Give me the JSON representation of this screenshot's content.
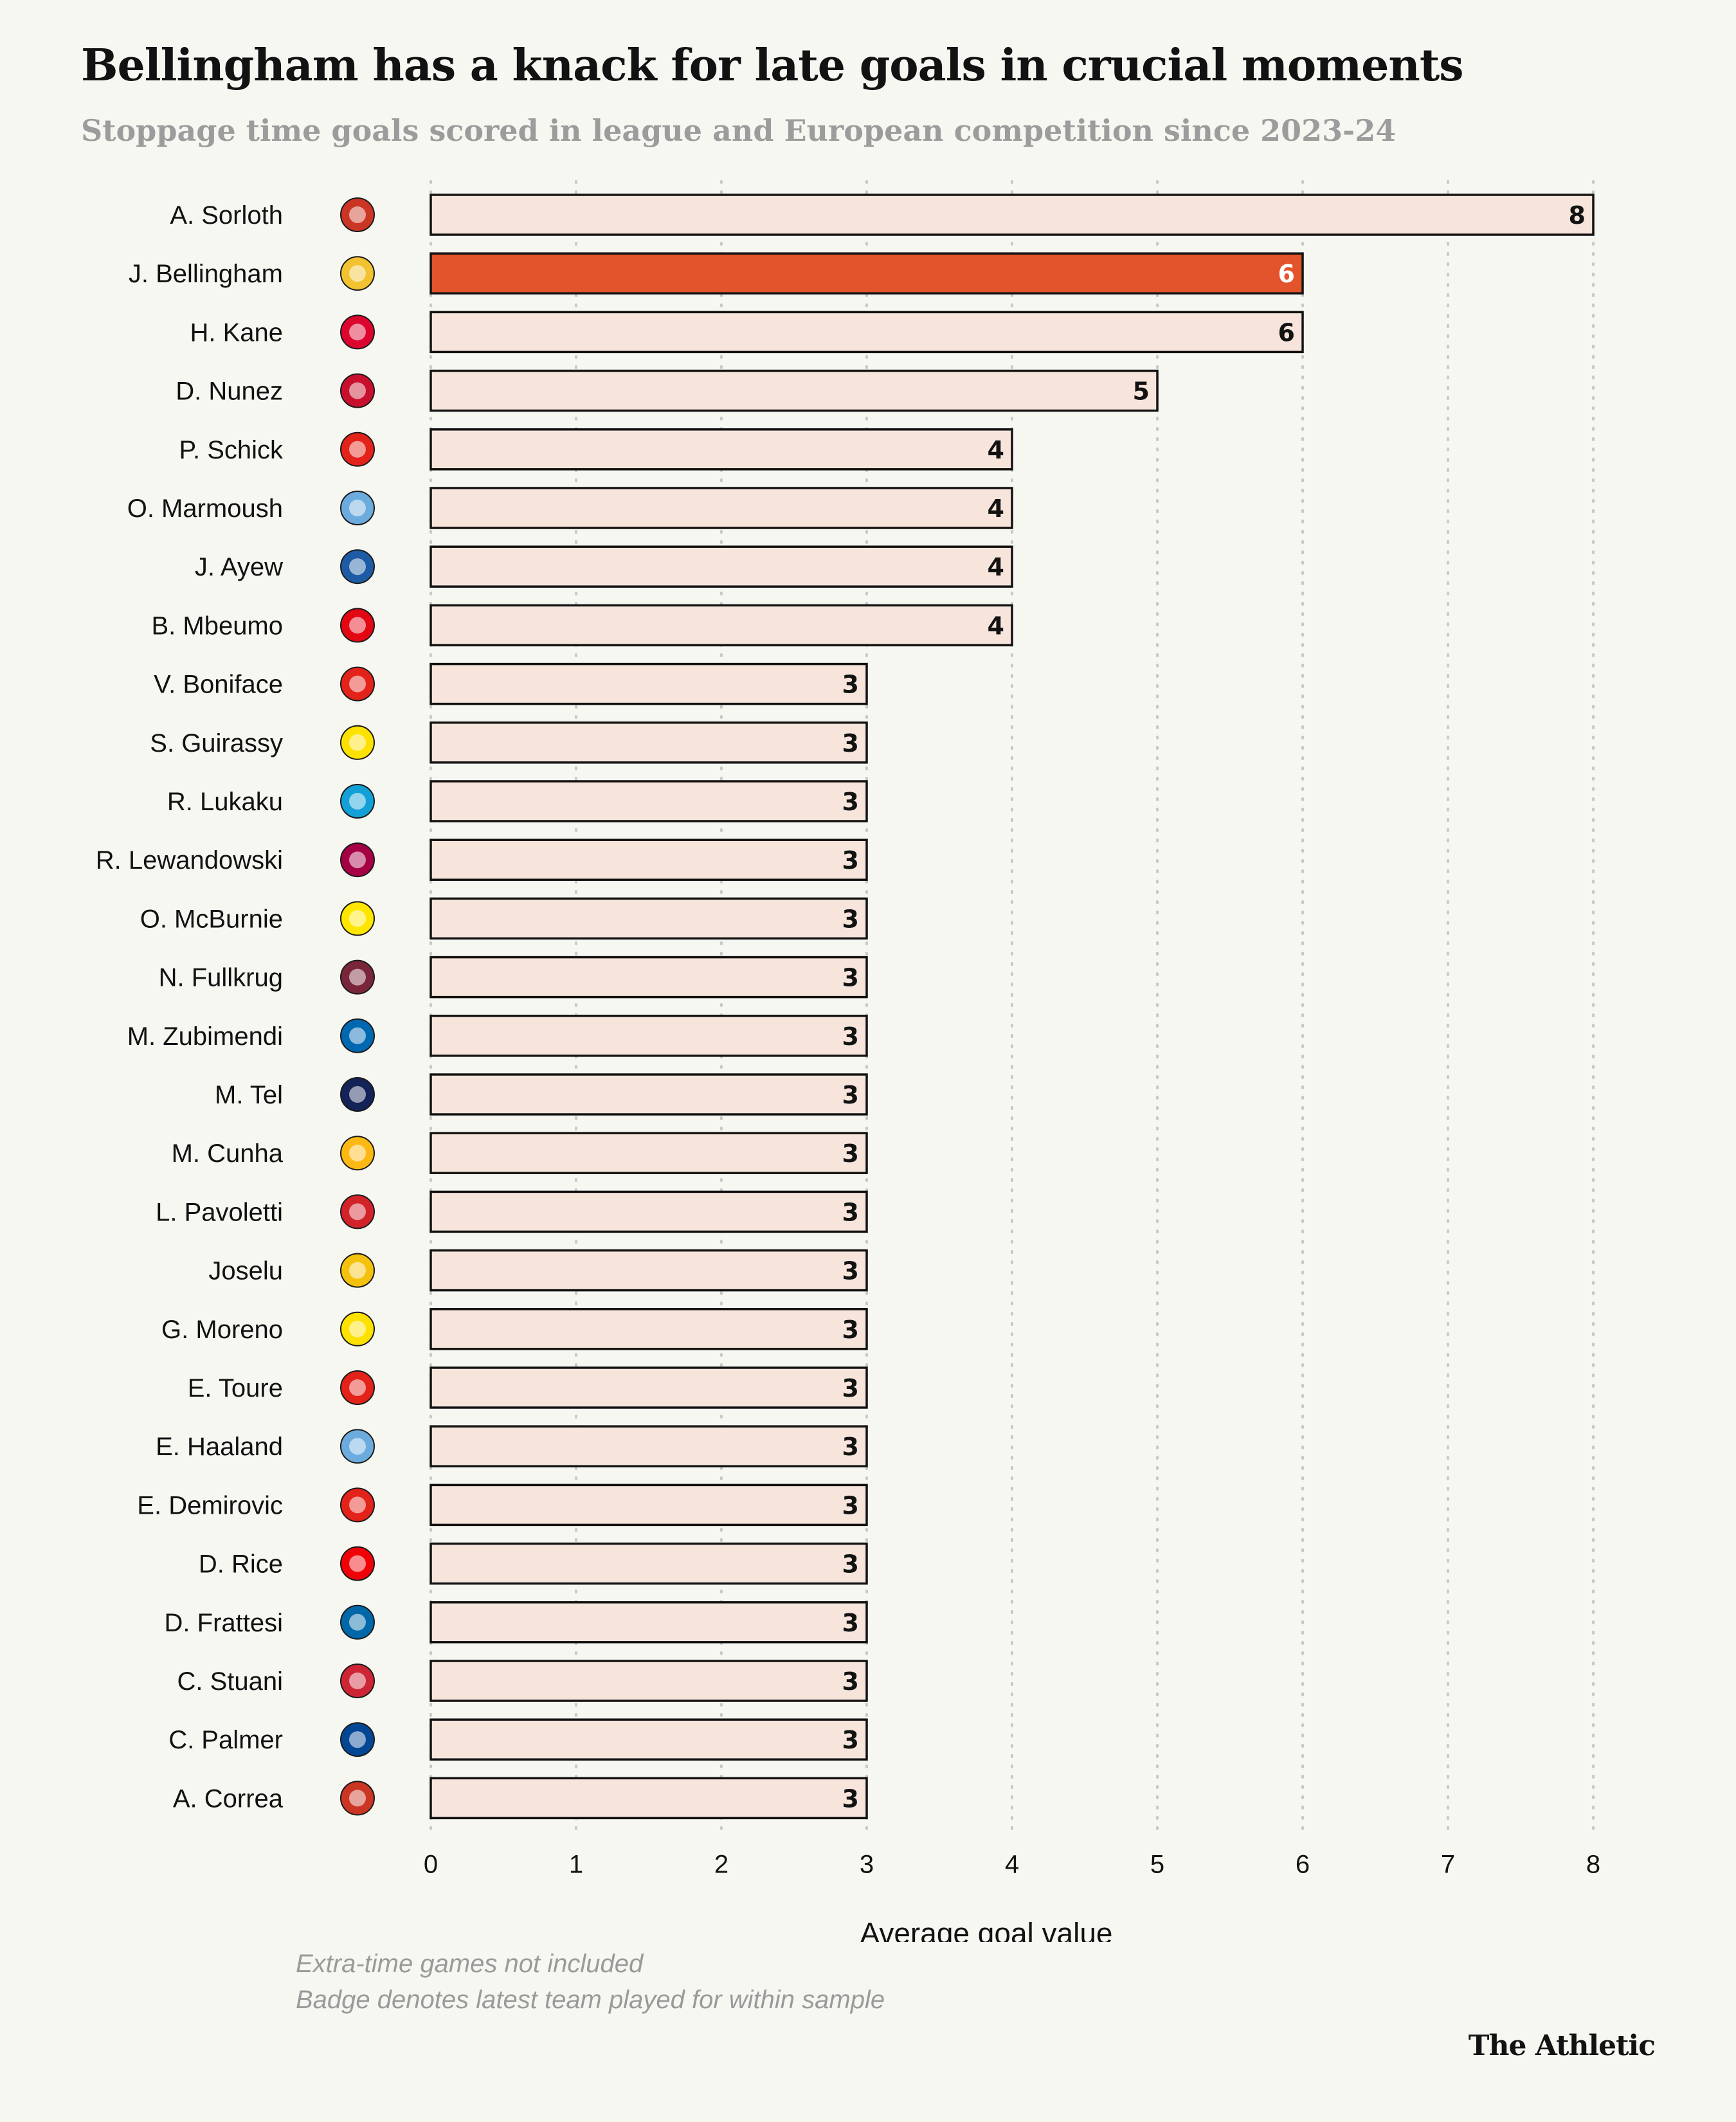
{
  "header": {
    "title": "Bellingham has a knack for late goals in crucial moments",
    "subtitle": "Stoppage time goals scored in league and European competition since 2023-24"
  },
  "chart_data": {
    "type": "bar",
    "orientation": "horizontal",
    "categories": [
      "A. Sorloth",
      "J. Bellingham",
      "H. Kane",
      "D. Nunez",
      "P. Schick",
      "O. Marmoush",
      "J. Ayew",
      "B. Mbeumo",
      "V. Boniface",
      "S. Guirassy",
      "R. Lukaku",
      "R. Lewandowski",
      "O. McBurnie",
      "N. Fullkrug",
      "M. Zubimendi",
      "M. Tel",
      "M. Cunha",
      "L. Pavoletti",
      "Joselu",
      "G. Moreno",
      "E. Toure",
      "E. Haaland",
      "E. Demirovic",
      "D. Rice",
      "D. Frattesi",
      "C. Stuani",
      "C. Palmer",
      "A. Correa"
    ],
    "values": [
      8,
      6,
      6,
      5,
      4,
      4,
      4,
      4,
      3,
      3,
      3,
      3,
      3,
      3,
      3,
      3,
      3,
      3,
      3,
      3,
      3,
      3,
      3,
      3,
      3,
      3,
      3,
      3
    ],
    "badges": [
      "atletico-madrid-badge",
      "real-madrid-badge",
      "bayern-munich-badge",
      "liverpool-badge",
      "bayer-leverkusen-badge",
      "manchester-city-badge",
      "leicester-city-badge",
      "brentford-badge",
      "bayer-leverkusen-badge",
      "borussia-dortmund-badge",
      "napoli-badge",
      "barcelona-badge",
      "las-palmas-badge",
      "west-ham-badge",
      "real-sociedad-badge",
      "tottenham-badge",
      "wolves-badge",
      "cagliari-badge",
      "al-gharafa-badge",
      "villarreal-badge",
      "stuttgart-badge",
      "manchester-city-badge",
      "stuttgart-badge",
      "arsenal-badge",
      "inter-badge",
      "girona-badge",
      "chelsea-badge",
      "atletico-madrid-badge"
    ],
    "badge_colors": [
      "#cb3524",
      "#f2c230",
      "#dc052d",
      "#c8102e",
      "#e32219",
      "#6cabdd",
      "#1d5ba4",
      "#e30613",
      "#e32219",
      "#fde100",
      "#12a0d7",
      "#a50044",
      "#ffe600",
      "#7a263a",
      "#0067b1",
      "#132257",
      "#fdb913",
      "#d2232a",
      "#f4c20d",
      "#fde100",
      "#e32219",
      "#6cabdd",
      "#e32219",
      "#ef0107",
      "#0068a8",
      "#cd2534",
      "#034694",
      "#cb3524"
    ],
    "highlight": "J. Bellingham",
    "xlabel": "Average goal value",
    "xlim": [
      0,
      8
    ],
    "xticks": [
      0,
      1,
      2,
      3,
      4,
      5,
      6,
      7,
      8
    ],
    "grid": true,
    "colors": {
      "bar": "#f7e5dc",
      "highlight": "#e3532c",
      "border": "#121212",
      "grid": "#c8c8c8"
    }
  },
  "notes": [
    "Extra-time games not included",
    "Badge denotes latest team played for within sample"
  ],
  "brand": "The Athletic"
}
